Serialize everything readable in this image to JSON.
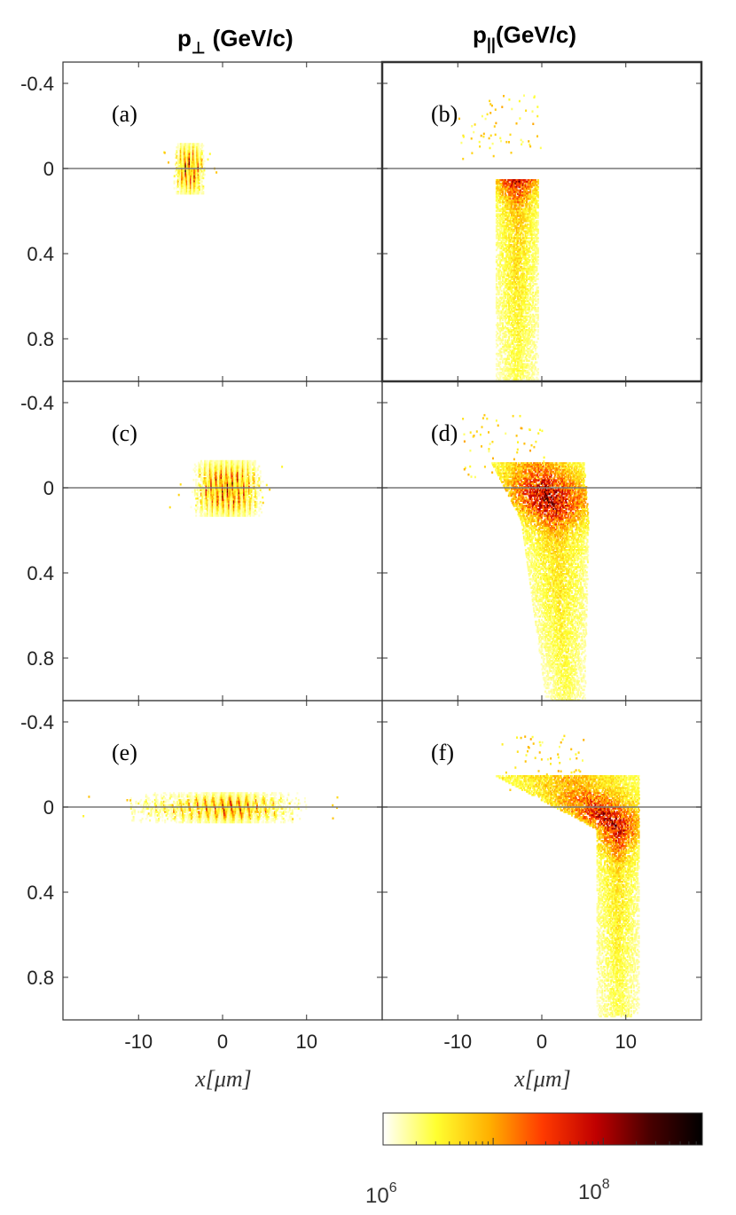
{
  "chart_data": {
    "type": "heatmap",
    "columns": [
      {
        "title_main": "p",
        "title_symbol": "⊥",
        "title_unit": "(GeV/c)"
      },
      {
        "title_main": "p",
        "title_symbol": "||",
        "title_unit": "(GeV/c)"
      }
    ],
    "y_ticks": [
      "-0.4",
      "0",
      "0.4",
      "0.8"
    ],
    "y_tick_values": [
      -0.4,
      0,
      0.4,
      0.8
    ],
    "ylim": [
      -0.5,
      1.0
    ],
    "x_ticks": [
      "-10",
      "0",
      "10"
    ],
    "x_tick_values": [
      -10,
      0,
      10
    ],
    "xlim": [
      -19,
      19
    ],
    "xlabel": "x[μm]",
    "colorbar": {
      "scale": "log",
      "colormap": "hot (reversed)",
      "min_label": "10",
      "min_exp": "6",
      "max_label": "10",
      "max_exp": "8",
      "colors": [
        "#ffffff",
        "#ffff30",
        "#ffb000",
        "#ff3a00",
        "#c00000",
        "#4a0000",
        "#000000"
      ]
    },
    "panels": [
      {
        "label": "(a)",
        "kind": "perp",
        "x_center": -4,
        "x_half": 2,
        "p_half": 0.12,
        "fringes": 8
      },
      {
        "label": "(b)",
        "kind": "para",
        "x_center": -3,
        "x_half": 2.5,
        "p_top": 0.05,
        "p_bottom": 1.0,
        "dense_p": 0.0,
        "tail_x": 0
      },
      {
        "label": "(c)",
        "kind": "perp",
        "x_center": 0.5,
        "x_half": 4.5,
        "p_half": 0.13,
        "fringes": 14
      },
      {
        "label": "(d)",
        "kind": "para",
        "x_center": 1.5,
        "x_half": 4,
        "p_top": -0.12,
        "p_bottom": 1.0,
        "dense_p": 0.05,
        "tail_x": -4
      },
      {
        "label": "(e)",
        "kind": "perp",
        "x_center": 0,
        "x_half": 11,
        "p_half": 0.07,
        "fringes": 22
      },
      {
        "label": "(f)",
        "kind": "para",
        "x_center": 9,
        "x_half": 2.5,
        "p_top": -0.15,
        "p_bottom": 0.98,
        "dense_p": 0.08,
        "tail_x": -7
      }
    ]
  }
}
